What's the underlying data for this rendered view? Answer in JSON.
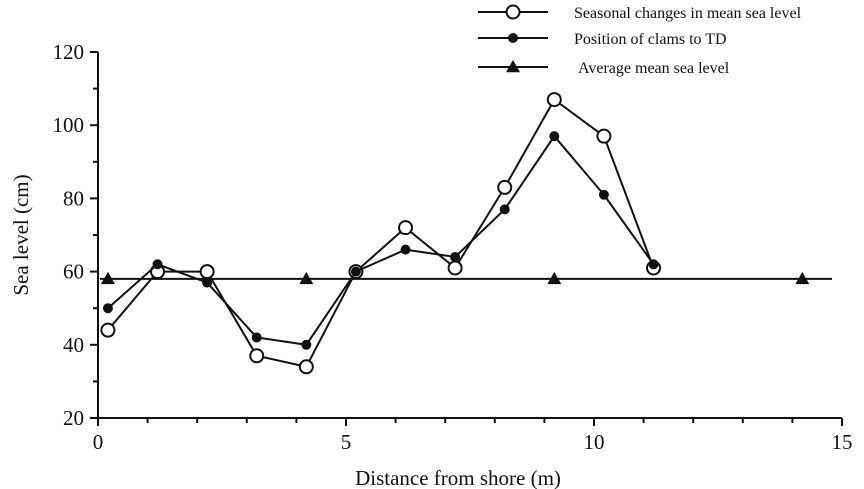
{
  "chart_data": {
    "type": "line",
    "title": "",
    "xlabel": "Distance from shore (m)",
    "ylabel": "Sea level (cm)",
    "xlim": [
      0,
      15
    ],
    "ylim": [
      20,
      120
    ],
    "xticks": [
      0,
      5,
      10,
      15
    ],
    "yticks": [
      20,
      40,
      60,
      80,
      100,
      120
    ],
    "grid": false,
    "legend_position": "top-right",
    "series": [
      {
        "name": "Seasonal changes in mean sea level",
        "marker": "open-circle",
        "x": [
          0.2,
          1.2,
          2.2,
          3.2,
          4.2,
          5.2,
          6.2,
          7.2,
          8.2,
          9.2,
          10.2,
          11.2
        ],
        "y": [
          44,
          60,
          60,
          37,
          34,
          60,
          72,
          61,
          83,
          107,
          97,
          61
        ]
      },
      {
        "name": "Position of clams to TD",
        "marker": "filled-circle",
        "x": [
          0.2,
          1.2,
          2.2,
          3.2,
          4.2,
          5.2,
          6.2,
          7.2,
          8.2,
          9.2,
          10.2,
          11.2
        ],
        "y": [
          50,
          62,
          57,
          42,
          40,
          60,
          66,
          64,
          77,
          97,
          81,
          62
        ]
      },
      {
        "name": "Average mean sea level",
        "marker": "filled-triangle",
        "x": [
          0.2,
          4.2,
          9.2,
          14.2
        ],
        "y": [
          58,
          58,
          58,
          58
        ]
      }
    ],
    "colors": {
      "ink": "#111111",
      "background": "#ffffff"
    }
  }
}
